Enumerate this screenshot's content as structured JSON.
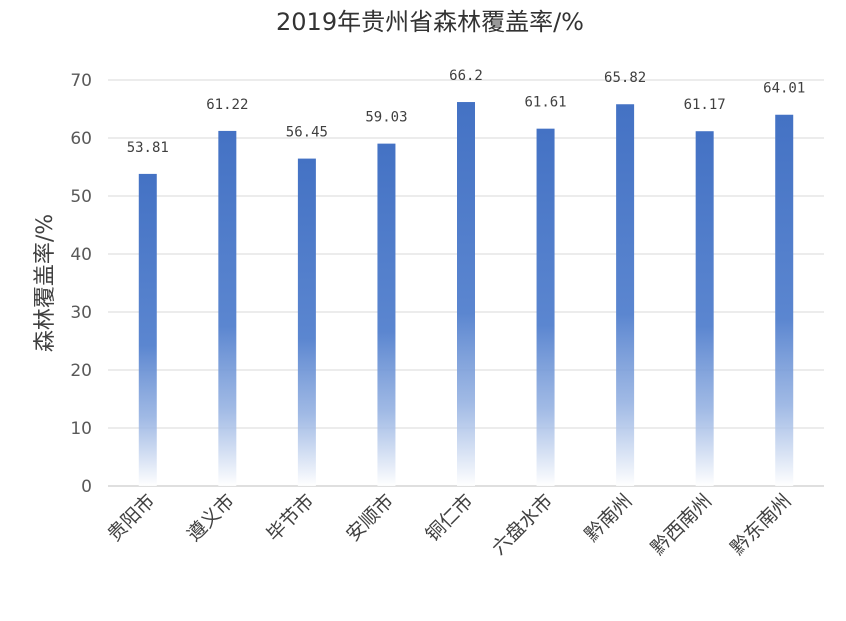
{
  "chart_data": {
    "type": "bar",
    "title": "2019年贵州省森林覆盖率/%",
    "xlabel": "",
    "ylabel": "森林覆盖率/%",
    "categories": [
      "贵阳市",
      "遵义市",
      "毕节市",
      "安顺市",
      "铜仁市",
      "六盘水市",
      "黔南州",
      "黔西南州",
      "黔东南州"
    ],
    "values": [
      53.81,
      61.22,
      56.45,
      59.03,
      66.2,
      61.61,
      65.82,
      61.17,
      64.01
    ],
    "value_labels": [
      "53.81",
      "61.22",
      "56.45",
      "59.03",
      "66.2",
      "61.61",
      "65.82",
      "61.17",
      "64.01"
    ],
    "ylim": [
      0,
      70
    ],
    "yticks": [
      "0",
      "10",
      "20",
      "30",
      "40",
      "50",
      "60",
      "70"
    ],
    "grid": true,
    "legend": "none",
    "colors": {
      "bar": "#4472C4",
      "grid": "#D9D9D9"
    }
  }
}
